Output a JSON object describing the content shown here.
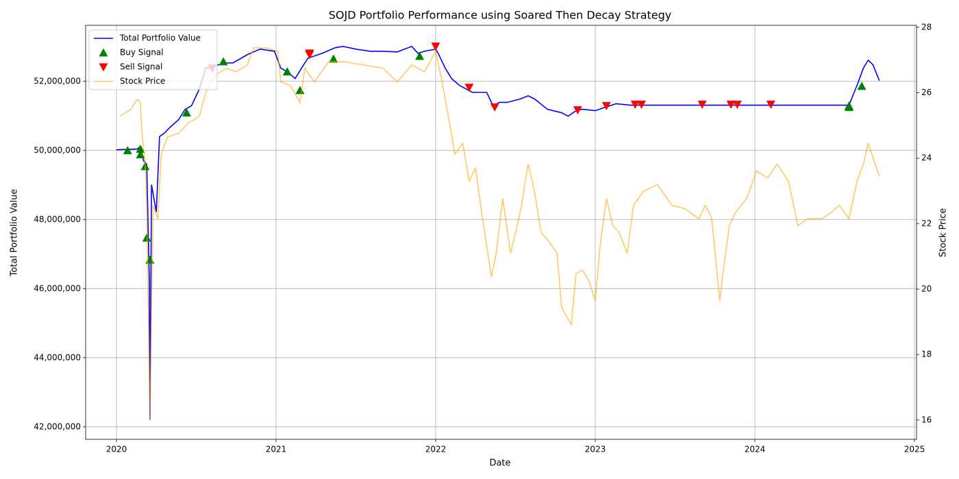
{
  "chart_data": {
    "type": "line",
    "title": "SOJD Portfolio Performance using Soared Then Decay Strategy",
    "x_label": "Date",
    "y_label": "Total Portfolio Value",
    "y2_label": "Stock Price",
    "xlim": [
      2019.807,
      2025.013
    ],
    "xticks": [
      2020,
      2021,
      2022,
      2023,
      2024,
      2025
    ],
    "ylim": [
      41640000,
      53620000
    ],
    "yticks": [
      {
        "value": 42000000,
        "label": "42,000,000"
      },
      {
        "value": 44000000,
        "label": "44,000,000"
      },
      {
        "value": 46000000,
        "label": "46,000,000"
      },
      {
        "value": 48000000,
        "label": "48,000,000"
      },
      {
        "value": 50000000,
        "label": "50,000,000"
      },
      {
        "value": 52000000,
        "label": "52,000,000"
      }
    ],
    "y2lim": [
      15.41,
      28.06
    ],
    "y2ticks": [
      16,
      18,
      20,
      22,
      24,
      26,
      28
    ],
    "grid": true,
    "legend": "upper left",
    "series": [
      {
        "name": "Total Portfolio Value",
        "type": "line",
        "color": "blue",
        "x": [
          2020.0,
          2020.13,
          2020.15,
          2020.17,
          2020.19,
          2020.206,
          2020.21,
          2020.22,
          2020.25,
          2020.27,
          2020.3,
          2020.34,
          2020.39,
          2020.43,
          2020.47,
          2020.52,
          2020.56,
          2020.6,
          2020.64,
          2020.69,
          2020.73,
          2020.82,
          2020.9,
          2020.99,
          2021.03,
          2021.07,
          2021.12,
          2021.16,
          2021.2,
          2021.29,
          2021.37,
          2021.42,
          2021.5,
          2021.59,
          2021.67,
          2021.76,
          2021.85,
          2021.89,
          2021.93,
          2022.0,
          2022.02,
          2022.06,
          2022.1,
          2022.15,
          2022.19,
          2022.23,
          2022.32,
          2022.36,
          2022.4,
          2022.45,
          2022.53,
          2022.58,
          2022.62,
          2022.7,
          2022.79,
          2022.83,
          2022.88,
          2022.92,
          2023.0,
          2023.05,
          2023.09,
          2023.13,
          2023.22,
          2023.56,
          2023.99,
          2024.42,
          2024.59,
          2024.64,
          2024.68,
          2024.71,
          2024.74,
          2024.78
        ],
        "values": [
          50020000,
          50040000,
          50120000,
          49700000,
          49600000,
          46240000,
          42200000,
          49010000,
          48220000,
          50400000,
          50500000,
          50690000,
          50890000,
          51190000,
          51290000,
          51780000,
          52380000,
          52420000,
          52480000,
          52530000,
          52530000,
          52770000,
          52930000,
          52870000,
          52380000,
          52280000,
          52080000,
          52380000,
          52670000,
          52810000,
          52970000,
          53010000,
          52930000,
          52870000,
          52870000,
          52850000,
          53010000,
          52810000,
          52870000,
          52930000,
          52770000,
          52380000,
          52080000,
          51880000,
          51780000,
          51680000,
          51680000,
          51290000,
          51390000,
          51390000,
          51490000,
          51580000,
          51490000,
          51190000,
          51090000,
          50990000,
          51150000,
          51190000,
          51150000,
          51230000,
          51290000,
          51350000,
          51310000,
          51310000,
          51310000,
          51310000,
          51310000,
          51880000,
          52380000,
          52610000,
          52480000,
          52020000
        ]
      },
      {
        "name": "Buy Signal",
        "type": "scatter",
        "marker": "up",
        "color": "green",
        "x": [
          2020.07,
          2020.15,
          2020.15,
          2020.18,
          2020.19,
          2020.21,
          2020.44,
          2020.67,
          2021.07,
          2021.15,
          2021.36,
          2021.9,
          2024.59,
          2024.59,
          2024.67
        ],
        "values": [
          50000000,
          50040000,
          49880000,
          49540000,
          47470000,
          46830000,
          51090000,
          52570000,
          52280000,
          51740000,
          52650000,
          52730000,
          51290000,
          51250000,
          51860000
        ]
      },
      {
        "name": "Sell Signal",
        "type": "scatter",
        "marker": "down",
        "color": "red",
        "x": [
          2020.6,
          2021.21,
          2021.21,
          2022.0,
          2022.21,
          2022.37,
          2022.89,
          2023.07,
          2023.25,
          2023.29,
          2023.67,
          2023.85,
          2023.89,
          2024.1
        ],
        "values": [
          52380000,
          52770000,
          52810000,
          53010000,
          51820000,
          51250000,
          51170000,
          51290000,
          51330000,
          51330000,
          51330000,
          51330000,
          51330000,
          51330000
        ]
      },
      {
        "name": "Stock Price",
        "type": "line",
        "axis": "y2",
        "color": "orange",
        "opacity": 0.6,
        "x": [
          2020.02,
          2020.09,
          2020.13,
          2020.15,
          2020.16,
          2020.18,
          2020.19,
          2020.206,
          2020.21,
          2020.219,
          2020.23,
          2020.26,
          2020.28,
          2020.32,
          2020.39,
          2020.45,
          2020.52,
          2020.56,
          2020.62,
          2020.69,
          2020.75,
          2020.82,
          2020.86,
          2020.94,
          2021.01,
          2021.03,
          2021.09,
          2021.15,
          2021.18,
          2021.24,
          2021.33,
          2021.42,
          2021.55,
          2021.67,
          2021.76,
          2021.85,
          2021.93,
          2022.0,
          2022.04,
          2022.08,
          2022.12,
          2022.17,
          2022.21,
          2022.25,
          2022.3,
          2022.35,
          2022.38,
          2022.42,
          2022.47,
          2022.53,
          2022.58,
          2022.62,
          2022.66,
          2022.7,
          2022.76,
          2022.79,
          2022.85,
          2022.88,
          2022.92,
          2022.96,
          2023.0,
          2023.03,
          2023.07,
          2023.11,
          2023.15,
          2023.2,
          2023.24,
          2023.3,
          2023.39,
          2023.48,
          2023.56,
          2023.65,
          2023.69,
          2023.73,
          2023.78,
          2023.8,
          2023.84,
          2023.88,
          2023.95,
          2024.01,
          2024.08,
          2024.14,
          2024.21,
          2024.27,
          2024.33,
          2024.42,
          2024.48,
          2024.53,
          2024.59,
          2024.64,
          2024.68,
          2024.71,
          2024.74,
          2024.78
        ],
        "values": [
          25.28,
          25.49,
          25.8,
          25.7,
          24.76,
          23.82,
          22.56,
          17.13,
          16.0,
          19.22,
          22.56,
          22.15,
          24.13,
          24.65,
          24.76,
          25.07,
          25.28,
          26.01,
          26.54,
          26.75,
          26.64,
          26.85,
          27.37,
          27.37,
          27.27,
          26.33,
          26.22,
          25.7,
          26.75,
          26.33,
          26.95,
          26.95,
          26.85,
          26.75,
          26.33,
          26.85,
          26.64,
          27.27,
          26.33,
          25.28,
          24.13,
          24.45,
          23.3,
          23.7,
          21.94,
          20.37,
          21.1,
          22.77,
          21.1,
          22.35,
          23.82,
          22.98,
          21.73,
          21.52,
          21.1,
          19.43,
          18.91,
          20.47,
          20.58,
          20.26,
          19.64,
          21.31,
          22.77,
          21.94,
          21.73,
          21.1,
          22.56,
          22.98,
          23.19,
          22.56,
          22.46,
          22.15,
          22.56,
          22.15,
          19.64,
          20.47,
          21.94,
          22.35,
          22.77,
          23.61,
          23.4,
          23.82,
          23.3,
          21.94,
          22.15,
          22.15,
          22.35,
          22.56,
          22.15,
          23.3,
          23.82,
          24.45,
          24.03,
          23.45
        ]
      }
    ]
  }
}
